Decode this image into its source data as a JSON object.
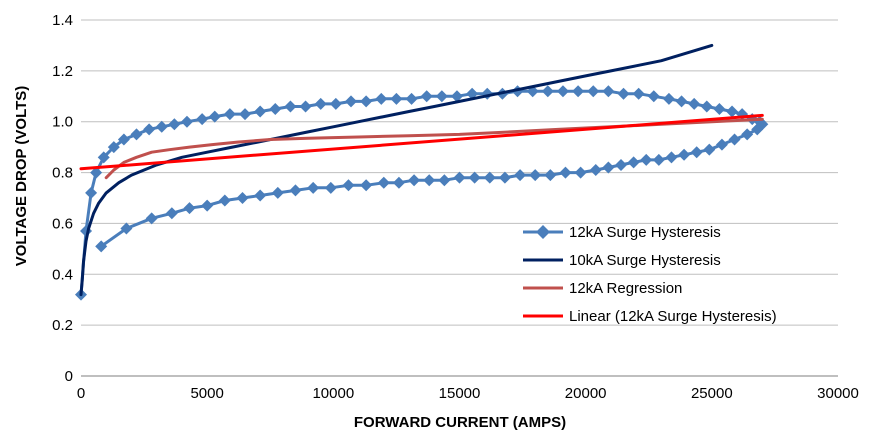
{
  "chart_data": {
    "type": "scatter",
    "title": "",
    "xlabel": "FORWARD CURRENT (AMPS)",
    "ylabel": "VOLTAGE DROP (VOLTS)",
    "xlim": [
      0,
      30000
    ],
    "ylim": [
      0,
      1.4
    ],
    "xticks": [
      0,
      5000,
      10000,
      15000,
      20000,
      25000,
      30000
    ],
    "yticks": [
      0,
      0.2,
      0.4,
      0.6,
      0.8,
      1.0,
      1.2,
      1.4
    ],
    "xtick_labels": [
      "0",
      "5000",
      "10000",
      "15000",
      "20000",
      "25000",
      "30000"
    ],
    "ytick_labels": [
      "0",
      "0.2",
      "0.4",
      "0.6",
      "0.8",
      "1.0",
      "1.2",
      "1.4"
    ],
    "grid": "horizontal",
    "legend_position": "bottom-right",
    "series": [
      {
        "name": "12kA Surge Hysteresis",
        "color": "#4a7ebb",
        "marker": "diamond",
        "x": [
          0,
          200,
          400,
          600,
          900,
          1300,
          1700,
          2200,
          2700,
          3200,
          3700,
          4200,
          4800,
          5300,
          5900,
          6500,
          7100,
          7700,
          8300,
          8900,
          9500,
          10100,
          10700,
          11300,
          11900,
          12500,
          13100,
          13700,
          14300,
          14900,
          15500,
          16100,
          16700,
          17300,
          17900,
          18500,
          19100,
          19700,
          20300,
          20900,
          21500,
          22100,
          22700,
          23300,
          23800,
          24300,
          24800,
          25300,
          25800,
          26200,
          26600,
          26900,
          27000,
          26800,
          26400,
          25900,
          25400,
          24900,
          24400,
          23900,
          23400,
          22900,
          22400,
          21900,
          21400,
          20900,
          20400,
          19800,
          19200,
          18600,
          18000,
          17400,
          16800,
          16200,
          15600,
          15000,
          14400,
          13800,
          13200,
          12600,
          12000,
          11300,
          10600,
          9900,
          9200,
          8500,
          7800,
          7100,
          6400,
          5700,
          5000,
          4300,
          3600,
          2800,
          1800,
          800
        ],
        "y": [
          0.32,
          0.57,
          0.72,
          0.8,
          0.86,
          0.9,
          0.93,
          0.95,
          0.97,
          0.98,
          0.99,
          1.0,
          1.01,
          1.02,
          1.03,
          1.03,
          1.04,
          1.05,
          1.06,
          1.06,
          1.07,
          1.07,
          1.08,
          1.08,
          1.09,
          1.09,
          1.09,
          1.1,
          1.1,
          1.1,
          1.11,
          1.11,
          1.11,
          1.12,
          1.12,
          1.12,
          1.12,
          1.12,
          1.12,
          1.12,
          1.11,
          1.11,
          1.1,
          1.09,
          1.08,
          1.07,
          1.06,
          1.05,
          1.04,
          1.03,
          1.01,
          1.0,
          0.99,
          0.97,
          0.95,
          0.93,
          0.91,
          0.89,
          0.88,
          0.87,
          0.86,
          0.85,
          0.85,
          0.84,
          0.83,
          0.82,
          0.81,
          0.8,
          0.8,
          0.79,
          0.79,
          0.79,
          0.78,
          0.78,
          0.78,
          0.78,
          0.77,
          0.77,
          0.77,
          0.76,
          0.76,
          0.75,
          0.75,
          0.74,
          0.74,
          0.73,
          0.72,
          0.71,
          0.7,
          0.69,
          0.67,
          0.66,
          0.64,
          0.62,
          0.58,
          0.51
        ]
      },
      {
        "name": "10kA Surge Hysteresis",
        "color": "#002060",
        "marker": "none",
        "x": [
          0,
          50,
          100,
          200,
          300,
          500,
          700,
          1000,
          1500,
          2000,
          3000,
          4000,
          5000,
          6000,
          7000,
          8000,
          9000,
          10000,
          11000,
          12000,
          13000,
          14000,
          15000,
          16000,
          17000,
          18000,
          19000,
          20000,
          21000,
          22000,
          23000,
          24000,
          25000
        ],
        "y": [
          0.32,
          0.38,
          0.45,
          0.53,
          0.58,
          0.64,
          0.68,
          0.72,
          0.76,
          0.79,
          0.83,
          0.86,
          0.88,
          0.9,
          0.92,
          0.94,
          0.96,
          0.98,
          1.0,
          1.02,
          1.04,
          1.06,
          1.08,
          1.1,
          1.12,
          1.14,
          1.16,
          1.18,
          1.2,
          1.22,
          1.24,
          1.27,
          1.3
        ]
      },
      {
        "name": "12kA Regression",
        "color": "#c0504d",
        "marker": "none",
        "x": [
          1000,
          1300,
          1700,
          2200,
          2800,
          3500,
          4300,
          5200,
          6200,
          7500,
          9000,
          11000,
          13000,
          15000,
          17000,
          19000,
          21000,
          23000,
          25000,
          27000
        ],
        "y": [
          0.78,
          0.81,
          0.84,
          0.86,
          0.88,
          0.89,
          0.9,
          0.91,
          0.92,
          0.93,
          0.935,
          0.94,
          0.945,
          0.95,
          0.96,
          0.97,
          0.98,
          0.99,
          1.0,
          1.01
        ]
      },
      {
        "name": "Linear (12kA Surge Hysteresis)",
        "color": "#ff0000",
        "marker": "none",
        "x": [
          0,
          27000
        ],
        "y": [
          0.815,
          1.025
        ]
      }
    ]
  }
}
